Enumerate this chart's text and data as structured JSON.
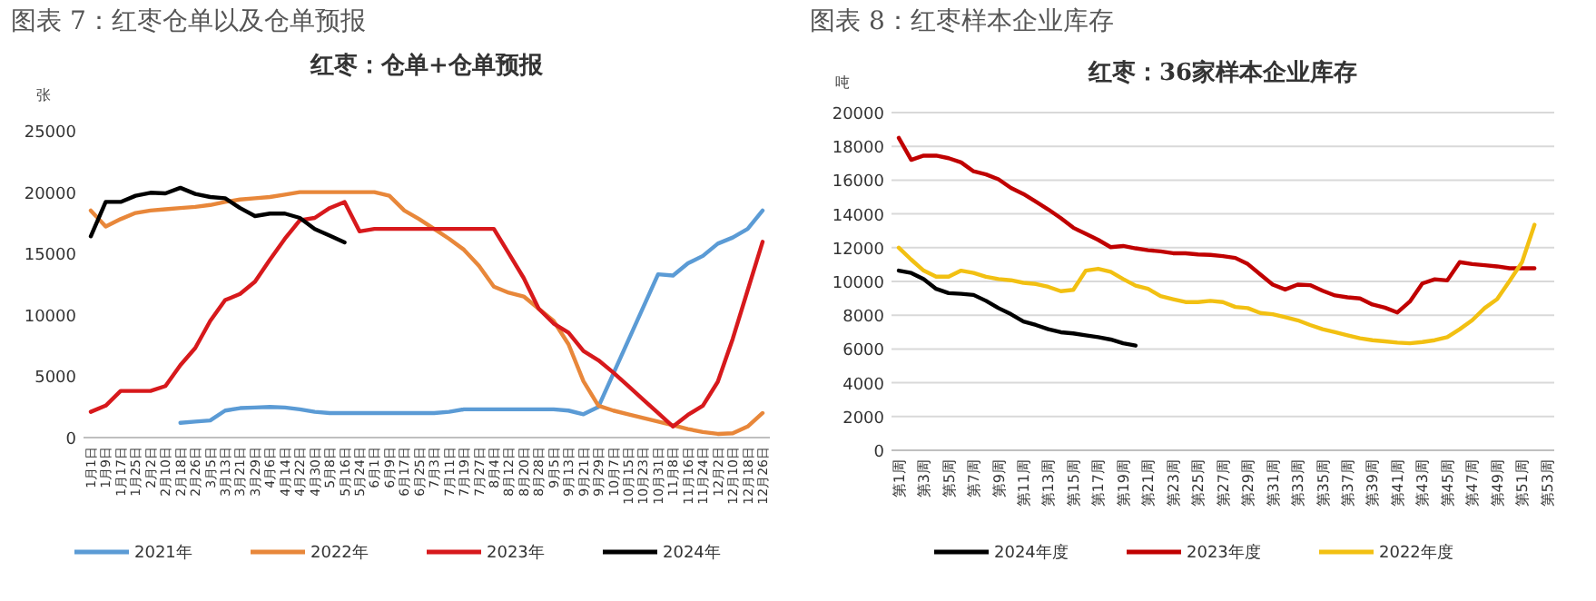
{
  "chart_data": [
    {
      "type": "line",
      "title": "图表 7：红枣仓单以及仓单预报",
      "subtitle": "红枣：仓单+仓单预报",
      "ylabel": "张",
      "categories": [
        "1月1日",
        "1月9日",
        "1月17日",
        "1月25日",
        "2月2日",
        "2月10日",
        "2月18日",
        "2月26日",
        "3月5日",
        "3月13日",
        "3月21日",
        "3月29日",
        "4月6日",
        "4月14日",
        "4月22日",
        "4月30日",
        "5月8日",
        "5月16日",
        "5月24日",
        "6月1日",
        "6月9日",
        "6月17日",
        "6月25日",
        "7月3日",
        "7月11日",
        "7月19日",
        "7月27日",
        "8月4日",
        "8月12日",
        "8月20日",
        "8月28日",
        "9月5日",
        "9月13日",
        "9月21日",
        "9月29日",
        "10月7日",
        "10月15日",
        "10月23日",
        "10月31日",
        "11月8日",
        "11月16日",
        "11月24日",
        "12月2日",
        "12月10日",
        "12月18日",
        "12月26日"
      ],
      "series": [
        {
          "name": "2021年",
          "color": "#5b9bd5",
          "values": [
            null,
            null,
            null,
            null,
            null,
            null,
            1200,
            1300,
            1400,
            2200,
            2400,
            2450,
            2500,
            2450,
            2300,
            2100,
            2000,
            2000,
            2000,
            2000,
            2000,
            2000,
            2000,
            2000,
            2100,
            2300,
            2300,
            2300,
            2300,
            2300,
            2300,
            2300,
            2200,
            1900,
            2500,
            5200,
            7900,
            10600,
            13300,
            13200,
            14200,
            14800,
            15800,
            16300,
            17000,
            18500
          ]
        },
        {
          "name": "2022年",
          "color": "#e8873a",
          "values": [
            18500,
            17200,
            17800,
            18300,
            18500,
            18600,
            18700,
            18800,
            18950,
            19200,
            19400,
            19500,
            19600,
            19800,
            20000,
            20000,
            20000,
            20000,
            20000,
            20000,
            19700,
            18500,
            17800,
            17000,
            16200,
            15300,
            14000,
            12300,
            11800,
            11500,
            10500,
            9500,
            7600,
            4600,
            2600,
            2200,
            1900,
            1600,
            1300,
            1000,
            700,
            450,
            300,
            350,
            900,
            2000
          ]
        },
        {
          "name": "2023年",
          "color": "#d7191c",
          "values": [
            2100,
            2600,
            3800,
            3800,
            3800,
            4200,
            5900,
            7300,
            9500,
            11200,
            11700,
            12700,
            14500,
            16200,
            17700,
            17900,
            18700,
            19200,
            16800,
            17000,
            17000,
            17000,
            17000,
            17000,
            17000,
            17000,
            17000,
            17000,
            15000,
            13000,
            10500,
            9300,
            8550,
            7050,
            6300,
            5300,
            4200,
            3100,
            2000,
            900,
            1850,
            2600,
            4550,
            8050,
            12000,
            15950
          ]
        },
        {
          "name": "2024年",
          "color": "#000000",
          "values": [
            16400,
            19200,
            19200,
            19700,
            19950,
            19900,
            20350,
            19850,
            19600,
            19500,
            18700,
            18050,
            18250,
            18250,
            17900,
            17000,
            16450,
            15900,
            null,
            null,
            null,
            null,
            null,
            null,
            null,
            null,
            null,
            null,
            null,
            null,
            null,
            null,
            null,
            null,
            null,
            null,
            null,
            null,
            null,
            null,
            null,
            null,
            null,
            null,
            null,
            null
          ]
        }
      ],
      "ylim": [
        0,
        25000
      ],
      "yticks": [
        0,
        5000,
        10000,
        15000,
        20000,
        25000
      ],
      "grid": false,
      "legend": "bottom"
    },
    {
      "type": "line",
      "title": "图表 8：红枣样本企业库存",
      "subtitle": "红枣：36家样本企业库存",
      "ylabel": "吨",
      "categories": [
        "第1周",
        null,
        "第3周",
        null,
        "第5周",
        null,
        "第7周",
        null,
        "第9周",
        null,
        "第11周",
        null,
        "第13周",
        null,
        "第15周",
        null,
        "第17周",
        null,
        "第19周",
        null,
        "第21周",
        null,
        "第23周",
        null,
        "第25周",
        null,
        "第27周",
        null,
        "第29周",
        null,
        "第31周",
        null,
        "第33周",
        null,
        "第35周",
        null,
        "第37周",
        null,
        "第39周",
        null,
        "第41周",
        null,
        "第43周",
        null,
        "第45周",
        null,
        "第47周",
        null,
        "第49周",
        null,
        "第51周",
        null,
        "第53周"
      ],
      "series": [
        {
          "name": "2024年度",
          "color": "#000000",
          "values": [
            10640,
            10500,
            10140,
            9560,
            9310,
            9270,
            9200,
            8850,
            8420,
            8060,
            7630,
            7420,
            7170,
            6990,
            6920,
            6810,
            6700,
            6560,
            6340,
            6200,
            null,
            null,
            null,
            null,
            null,
            null,
            null,
            null,
            null,
            null,
            null,
            null,
            null,
            null,
            null,
            null,
            null,
            null,
            null,
            null,
            null,
            null,
            null,
            null,
            null,
            null,
            null,
            null,
            null,
            null,
            null,
            null,
            null
          ]
        },
        {
          "name": "2023年度",
          "color": "#c00000",
          "values": [
            18500,
            17200,
            17450,
            17450,
            17300,
            17050,
            16520,
            16340,
            16050,
            15540,
            15180,
            14720,
            14260,
            13750,
            13180,
            12820,
            12460,
            12030,
            12100,
            11960,
            11850,
            11780,
            11670,
            11670,
            11600,
            11570,
            11500,
            11390,
            11030,
            10420,
            9810,
            9520,
            9810,
            9780,
            9450,
            9170,
            9060,
            8990,
            8630,
            8450,
            8160,
            8810,
            9880,
            10130,
            10060,
            11140,
            11030,
            10960,
            10890,
            10780,
            10780,
            10780,
            null
          ]
        },
        {
          "name": "2022年度",
          "color": "#f2c012",
          "values": [
            12000,
            11290,
            10640,
            10280,
            10280,
            10640,
            10500,
            10280,
            10140,
            10070,
            9920,
            9850,
            9680,
            9420,
            9500,
            10640,
            10750,
            10570,
            10140,
            9750,
            9560,
            9130,
            8950,
            8780,
            8780,
            8850,
            8780,
            8490,
            8420,
            8130,
            8060,
            7880,
            7700,
            7420,
            7170,
            6990,
            6810,
            6630,
            6520,
            6450,
            6380,
            6340,
            6410,
            6520,
            6700,
            7170,
            7700,
            8420,
            8950,
            10030,
            11140,
            13360,
            null
          ]
        }
      ],
      "ylim": [
        0,
        20000
      ],
      "yticks": [
        0,
        2000,
        4000,
        6000,
        8000,
        10000,
        12000,
        14000,
        16000,
        18000,
        20000
      ],
      "grid": "y",
      "legend": "bottom"
    }
  ]
}
